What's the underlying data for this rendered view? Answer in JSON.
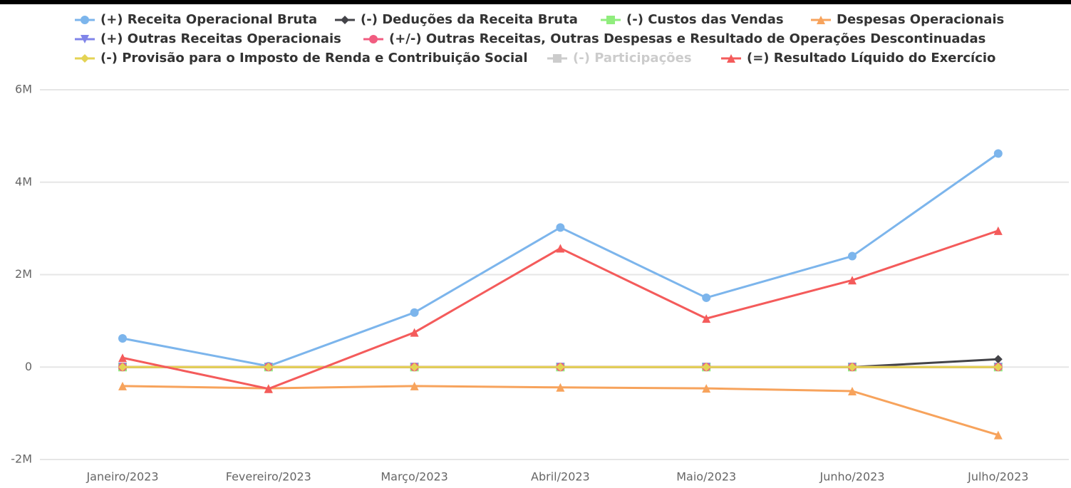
{
  "chart_data": {
    "type": "line",
    "categories": [
      "Janeiro/2023",
      "Fevereiro/2023",
      "Março/2023",
      "Abril/2023",
      "Maio/2023",
      "Junho/2023",
      "Julho/2023"
    ],
    "series": [
      {
        "name": "(+) Receita Operacional Bruta",
        "color": "#7cb5ec",
        "marker": "circle",
        "values": [
          620000,
          20000,
          1180000,
          3020000,
          1500000,
          2400000,
          4620000
        ]
      },
      {
        "name": "(-) Deduções da Receita Bruta",
        "color": "#434348",
        "marker": "diamond",
        "values": [
          0,
          0,
          0,
          0,
          0,
          0,
          170000
        ]
      },
      {
        "name": "(-) Custos das Vendas",
        "color": "#90ed7d",
        "marker": "square",
        "values": [
          0,
          0,
          0,
          0,
          0,
          0,
          0
        ]
      },
      {
        "name": "Despesas Operacionais",
        "color": "#f7a35c",
        "marker": "triangle",
        "values": [
          -410000,
          -460000,
          -410000,
          -440000,
          -460000,
          -520000,
          -1470000
        ]
      },
      {
        "name": "(+) Outras Receitas Operacionais",
        "color": "#8085e9",
        "marker": "triangle-down",
        "values": [
          0,
          0,
          0,
          0,
          0,
          0,
          0
        ]
      },
      {
        "name": "(+/-) Outras Receitas, Outras Despesas e Resultado de Operações Descontinuadas",
        "color": "#f15c80",
        "marker": "circle",
        "values": [
          0,
          0,
          0,
          0,
          0,
          0,
          0
        ]
      },
      {
        "name": "(-) Provisão para o Imposto de Renda e Contribuição Social",
        "color": "#e4d354",
        "marker": "diamond",
        "values": [
          0,
          0,
          0,
          0,
          0,
          0,
          0
        ]
      },
      {
        "name": "(-) Participações",
        "color": "#cccccc",
        "marker": "square",
        "visible": false
      },
      {
        "name": "(=) Resultado Líquido do Exercício",
        "color": "#f45b5b",
        "marker": "triangle",
        "values": [
          200000,
          -470000,
          750000,
          2570000,
          1050000,
          1880000,
          2950000
        ]
      }
    ],
    "ylim": [
      -2000000,
      6000000
    ],
    "yticks": [
      {
        "value": -2000000,
        "label": "-2M"
      },
      {
        "value": 0,
        "label": "0"
      },
      {
        "value": 2000000,
        "label": "2M"
      },
      {
        "value": 4000000,
        "label": "4M"
      },
      {
        "value": 6000000,
        "label": "6M"
      }
    ],
    "grid": true,
    "legend": "top"
  }
}
